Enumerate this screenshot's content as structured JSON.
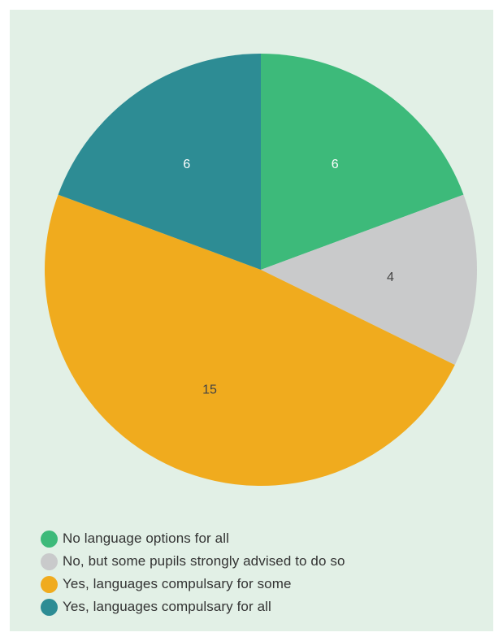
{
  "chart_data": {
    "type": "pie",
    "title": "",
    "slices": [
      {
        "label": "No language options for all",
        "value": 6,
        "value_label": "6",
        "color": "#3dba7a",
        "label_color": "#ffffff"
      },
      {
        "label": "No, but some pupils strongly advised to do so",
        "value": 4,
        "value_label": "4",
        "color": "#c9cacb",
        "label_color": "#444444"
      },
      {
        "label": "Yes, languages compulsary for some",
        "value": 15,
        "value_label": "15",
        "color": "#f0ab1e",
        "label_color": "#444444"
      },
      {
        "label": "Yes, languages compulsary for all",
        "value": 6,
        "value_label": "6",
        "color": "#2d8c94",
        "label_color": "#ffffff"
      }
    ],
    "start_angle": "12 o'clock",
    "direction": "clockwise",
    "legend_position": "bottom-left"
  },
  "colors": {
    "background": "#e2f0e6"
  }
}
